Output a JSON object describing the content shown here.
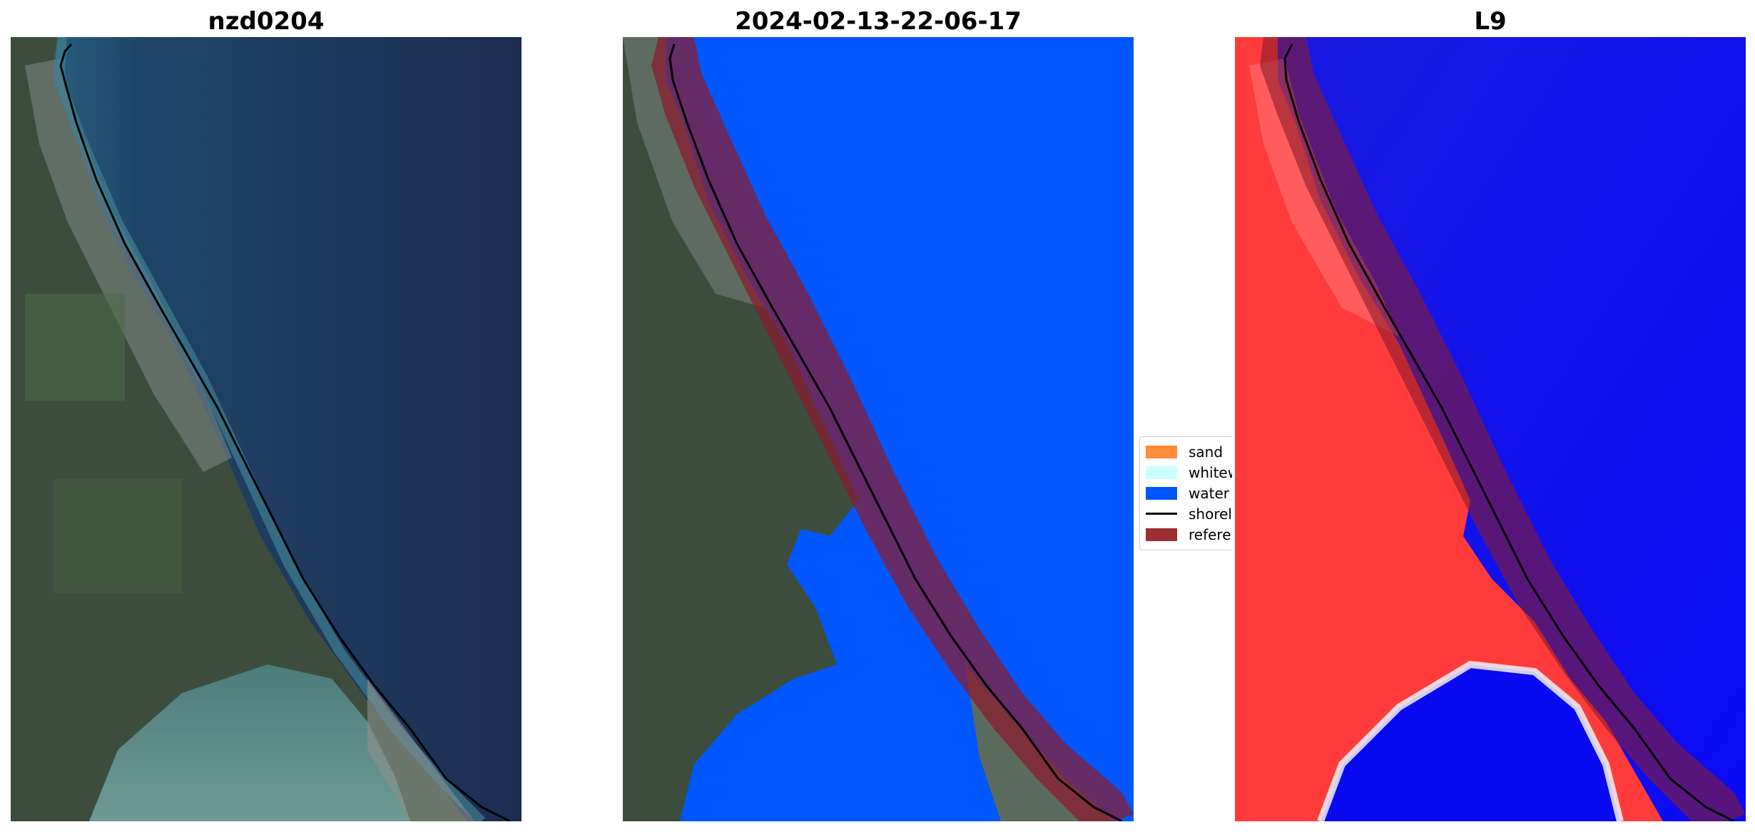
{
  "panels": [
    {
      "title": "nzd0204"
    },
    {
      "title": "2024-02-13-22-06-17"
    },
    {
      "title": "L9"
    }
  ],
  "legend": {
    "items": [
      {
        "label": "sand",
        "color": "#ff8c3a"
      },
      {
        "label": "whitew",
        "color": "#ccffff"
      },
      {
        "label": "water",
        "color": "#0057ff"
      },
      {
        "label": "shorel",
        "color": "#000000"
      },
      {
        "label": "referer",
        "color": "#9c2f33"
      }
    ]
  },
  "colors": {
    "ocean_dark": "#1d3055",
    "ocean_mid": "#234a6e",
    "land": "#3a4a3c",
    "water_class": "#0057ff",
    "reference_buffer": "#8b1a2d",
    "index_land": "#ff3030",
    "index_water": "#1010f0"
  }
}
